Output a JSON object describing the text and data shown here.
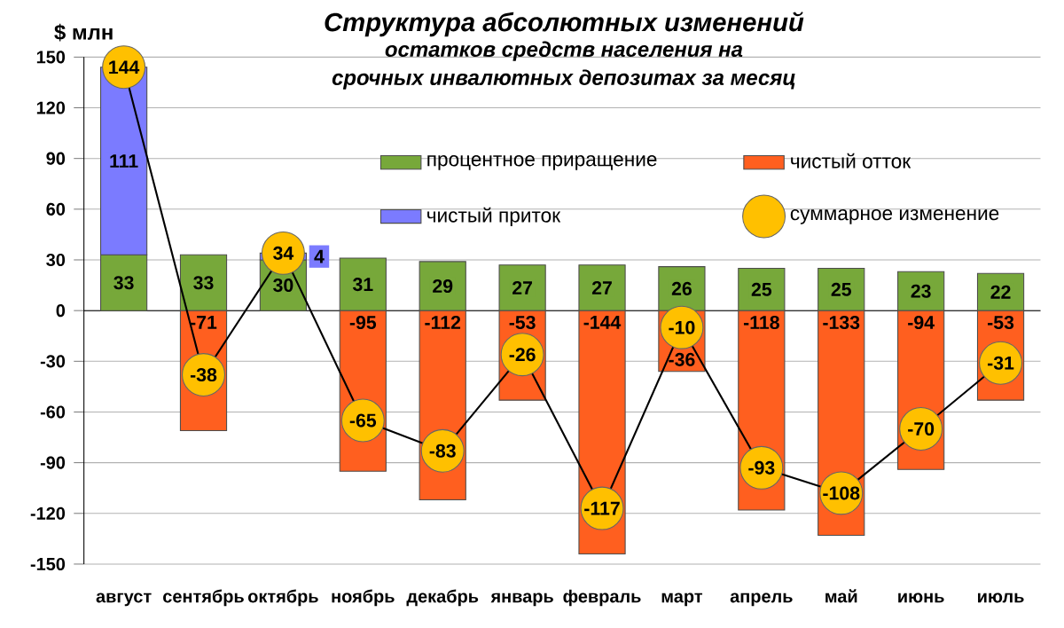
{
  "chart_data": {
    "type": "bar",
    "title": "Структура абсолютных изменений",
    "subtitle": "остатков средств населения на срочных инвалютных депозитах за месяц",
    "ylabel": "$ млн",
    "categories": [
      "август",
      "сентябрь",
      "октябрь",
      "ноябрь",
      "декабрь",
      "январь",
      "февраль",
      "март",
      "апрель",
      "май",
      "июнь",
      "июль"
    ],
    "stacked": true,
    "series": [
      {
        "name": "процентное приращение",
        "color": "#77a83a",
        "values": [
          33,
          33,
          30,
          31,
          29,
          27,
          27,
          26,
          25,
          25,
          23,
          22
        ]
      },
      {
        "name": "чистый отток",
        "color": "#ff5f1f",
        "values": [
          null,
          -71,
          null,
          -95,
          -112,
          -53,
          -144,
          -36,
          -118,
          -133,
          -94,
          -53
        ]
      },
      {
        "name": "чистый приток",
        "color": "#7b7bff",
        "values": [
          111,
          null,
          4,
          null,
          null,
          null,
          null,
          null,
          null,
          null,
          null,
          null
        ]
      },
      {
        "name": "суммарное изменение",
        "type": "line",
        "color": "#ffc000",
        "marker": "circle",
        "values": [
          144,
          -38,
          34,
          -65,
          -83,
          -26,
          -117,
          -10,
          -93,
          -108,
          -70,
          -31
        ]
      }
    ],
    "ylim": [
      -150,
      150
    ],
    "yticks": [
      -150,
      -120,
      -90,
      -60,
      -30,
      0,
      30,
      60,
      90,
      120,
      150
    ],
    "grid": "y",
    "legend": "top right",
    "data_labels": true
  }
}
